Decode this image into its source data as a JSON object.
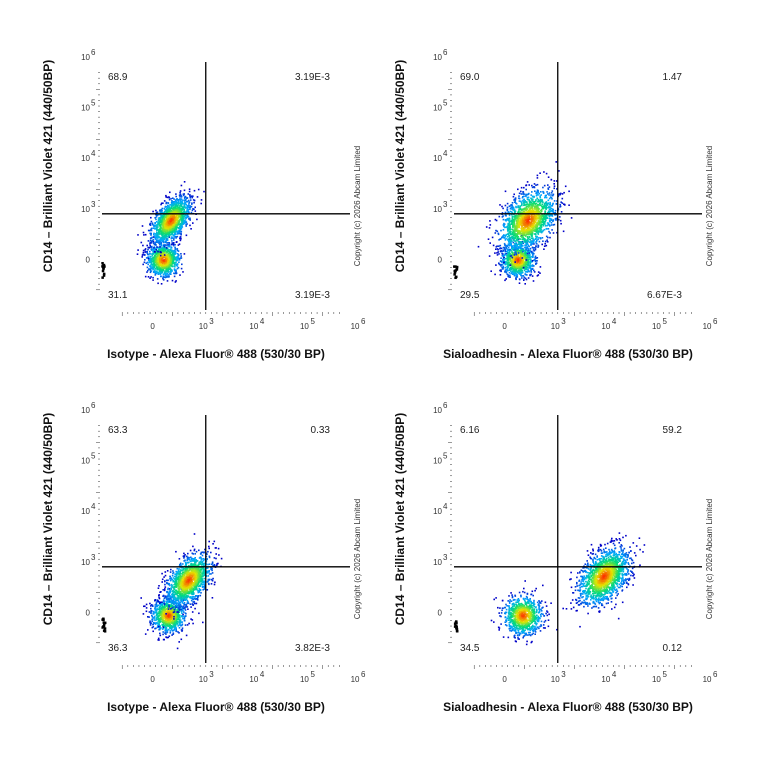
{
  "chart_data": [
    {
      "type": "scatter",
      "xlabel": "Isotype - Alexa Fluor® 488 (530/30 BP)",
      "ylabel": "CD14 – Brilliant Violet 421 (440/50BP)",
      "copyright": "Copyright (c) 2026 Abcam Limited",
      "x_ticks": [
        "0",
        "10",
        "10",
        "10",
        "10"
      ],
      "x_tick_exp": [
        "",
        "3",
        "4",
        "5",
        "6"
      ],
      "y_ticks": [
        "0",
        "10",
        "10",
        "10",
        "10"
      ],
      "y_tick_exp": [
        "",
        "3",
        "4",
        "5",
        "6"
      ],
      "gate": {
        "x": "1.2e3",
        "y": "0.9e3"
      },
      "quadrants": {
        "top_left": "68.9",
        "top_right": "3.19E-3",
        "bottom_left": "31.1",
        "bottom_right": "3.19E-3"
      },
      "clusters": [
        {
          "x": 0.2,
          "y": 0.0,
          "n": 900,
          "spread": 0.3
        },
        {
          "x": 0.35,
          "y": 0.78,
          "n": 1400,
          "spread": 0.35
        }
      ],
      "colors": {
        "low": "#0000c8",
        "mid": "#00c8ff",
        "high": "#ff2000",
        "gate": "#000000"
      }
    },
    {
      "type": "scatter",
      "xlabel": "Sialoadhesin - Alexa Fluor® 488 (530/30 BP)",
      "ylabel": "CD14 – Brilliant Violet 421 (440/50BP)",
      "copyright": "Copyright (c) 2026 Abcam Limited",
      "x_ticks": [
        "0",
        "10",
        "10",
        "10",
        "10"
      ],
      "x_tick_exp": [
        "",
        "3",
        "4",
        "5",
        "6"
      ],
      "y_ticks": [
        "0",
        "10",
        "10",
        "10",
        "10"
      ],
      "y_tick_exp": [
        "",
        "3",
        "4",
        "5",
        "6"
      ],
      "gate": {
        "x": "1.2e3",
        "y": "0.9e3"
      },
      "quadrants": {
        "top_left": "69.0",
        "top_right": "1.47",
        "bottom_left": "29.5",
        "bottom_right": "6.67E-3"
      },
      "clusters": [
        {
          "x": 0.25,
          "y": 0.0,
          "n": 900,
          "spread": 0.3
        },
        {
          "x": 0.45,
          "y": 0.78,
          "n": 1600,
          "spread": 0.5
        }
      ],
      "colors": {
        "low": "#0000c8",
        "mid": "#00c8ff",
        "high": "#ff2000",
        "gate": "#000000"
      }
    },
    {
      "type": "scatter",
      "xlabel": "Isotype - Alexa Fluor® 488 (530/30 BP)",
      "ylabel": "CD14 – Brilliant Violet 421 (440/50BP)",
      "copyright": "Copyright (c) 2026 Abcam Limited",
      "x_ticks": [
        "0",
        "10",
        "10",
        "10",
        "10"
      ],
      "x_tick_exp": [
        "",
        "3",
        "4",
        "5",
        "6"
      ],
      "y_ticks": [
        "0",
        "10",
        "10",
        "10",
        "10"
      ],
      "y_tick_exp": [
        "",
        "3",
        "4",
        "5",
        "6"
      ],
      "gate": {
        "x": "1.2e3",
        "y": "0.9e3"
      },
      "quadrants": {
        "top_left": "63.3",
        "top_right": "0.33",
        "bottom_left": "36.3",
        "bottom_right": "3.82E-3"
      },
      "clusters": [
        {
          "x": 0.3,
          "y": -0.05,
          "n": 900,
          "spread": 0.3
        },
        {
          "x": 0.7,
          "y": 0.65,
          "n": 1400,
          "spread": 0.4
        }
      ],
      "colors": {
        "low": "#0000c8",
        "mid": "#00c8ff",
        "high": "#ff2000",
        "gate": "#000000"
      }
    },
    {
      "type": "scatter",
      "xlabel": "Sialoadhesin - Alexa Fluor® 488 (530/30 BP)",
      "ylabel": "CD14 – Brilliant Violet 421 (440/50BP)",
      "copyright": "Copyright (c) 2026 Abcam Limited",
      "x_ticks": [
        "0",
        "10",
        "10",
        "10",
        "10"
      ],
      "x_tick_exp": [
        "",
        "3",
        "4",
        "5",
        "6"
      ],
      "y_ticks": [
        "0",
        "10",
        "10",
        "10",
        "10"
      ],
      "y_tick_exp": [
        "",
        "3",
        "4",
        "5",
        "6"
      ],
      "gate": {
        "x": "1.2e3",
        "y": "0.9e3"
      },
      "quadrants": {
        "top_left": "6.16",
        "top_right": "59.2",
        "bottom_left": "34.5",
        "bottom_right": "0.12"
      },
      "clusters": [
        {
          "x": 0.35,
          "y": -0.05,
          "n": 900,
          "spread": 0.35
        },
        {
          "x": 1.95,
          "y": 0.72,
          "n": 1600,
          "spread": 0.45
        }
      ],
      "colors": {
        "low": "#0000c8",
        "mid": "#00c8ff",
        "high": "#ff2000",
        "gate": "#000000"
      }
    }
  ]
}
